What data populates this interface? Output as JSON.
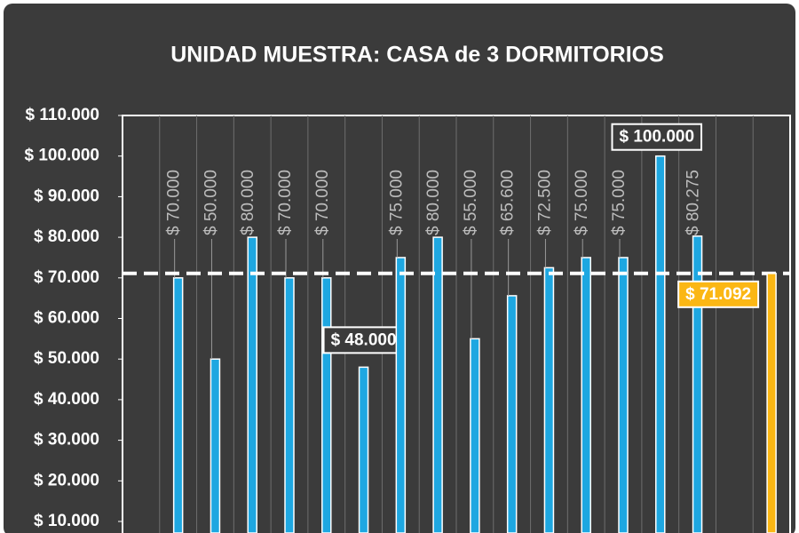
{
  "chart_data": {
    "type": "bar",
    "title": "UNIDAD MUESTRA: CASA de 3 DORMITORIOS",
    "categories": [
      null,
      null,
      null,
      null,
      null,
      null,
      null,
      null,
      null,
      null,
      null,
      null,
      null,
      null,
      null,
      null,
      null,
      null
    ],
    "series": [
      {
        "color": "#1ea7e1",
        "values": [
          null,
          70000,
          50000,
          80000,
          70000,
          70000,
          48000,
          75000,
          80000,
          55000,
          65600,
          72500,
          75000,
          75000,
          100000,
          80275,
          null,
          null
        ],
        "value_labels": [
          null,
          "$ 70.000",
          "$ 50.000",
          "$ 80.000",
          "$ 70.000",
          "$ 70.000",
          "$ 48.000",
          "$ 75.000",
          "$ 80.000",
          "$ 55.000",
          "$ 65.600",
          "$ 72.500",
          "$ 75.000",
          "$ 75.000",
          "$ 100.000",
          "$ 80.275",
          null,
          null
        ]
      },
      {
        "color": "#fbb714",
        "values": [
          null,
          null,
          null,
          null,
          null,
          null,
          null,
          null,
          null,
          null,
          null,
          null,
          null,
          null,
          null,
          null,
          null,
          71092
        ],
        "value_labels": [
          null,
          null,
          null,
          null,
          null,
          null,
          null,
          null,
          null,
          null,
          null,
          null,
          null,
          null,
          null,
          null,
          null,
          "$ 71.092"
        ]
      }
    ],
    "ylim": [
      10000,
      110000
    ],
    "yticks": [
      {
        "value": 10000,
        "label": "$ 10.000"
      },
      {
        "value": 20000,
        "label": "$ 20.000"
      },
      {
        "value": 30000,
        "label": "$ 30.000"
      },
      {
        "value": 40000,
        "label": "$ 40.000"
      },
      {
        "value": 50000,
        "label": "$ 50.000"
      },
      {
        "value": 60000,
        "label": "$ 60.000"
      },
      {
        "value": 70000,
        "label": "$ 70.000"
      },
      {
        "value": 80000,
        "label": "$ 80.000"
      },
      {
        "value": 90000,
        "label": "$ 90.000"
      },
      {
        "value": 100000,
        "label": "$ 100.000"
      },
      {
        "value": 110000,
        "label": "$ 110.000"
      }
    ],
    "grid": true
  }
}
